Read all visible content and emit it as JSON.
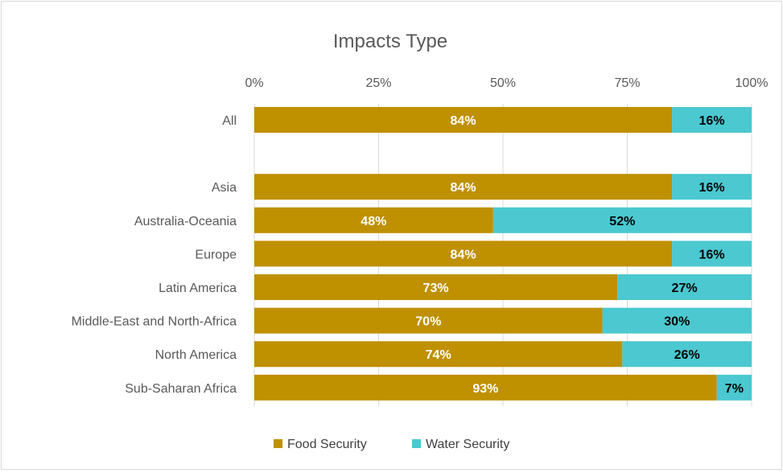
{
  "chart_data": {
    "type": "bar",
    "orientation": "horizontal",
    "stacked": true,
    "title": "Impacts Type",
    "xlim": [
      0,
      100
    ],
    "x_ticks": [
      "0%",
      "25%",
      "50%",
      "75%",
      "100%"
    ],
    "x_tick_values": [
      0,
      25,
      50,
      75,
      100
    ],
    "grid": true,
    "legend_position": "bottom",
    "categories": [
      "All",
      "",
      "Asia",
      "Australia-Oceania",
      "Europe",
      "Latin America",
      "Middle-East and North-Africa",
      "North America",
      "Sub-Saharan Africa"
    ],
    "series": [
      {
        "name": "Food Security",
        "color": "#bf9000",
        "label_color": "#ffffff",
        "values": [
          84,
          null,
          84,
          48,
          84,
          73,
          70,
          74,
          93
        ],
        "labels": [
          "84%",
          "",
          "84%",
          "48%",
          "84%",
          "73%",
          "70%",
          "74%",
          "93%"
        ]
      },
      {
        "name": "Water Security",
        "color": "#4bc8d0",
        "label_color": "#000000",
        "values": [
          16,
          null,
          16,
          52,
          16,
          27,
          30,
          26,
          7
        ],
        "labels": [
          "16%",
          "",
          "16%",
          "52%",
          "16%",
          "27%",
          "30%",
          "26%",
          "7%"
        ]
      }
    ]
  }
}
